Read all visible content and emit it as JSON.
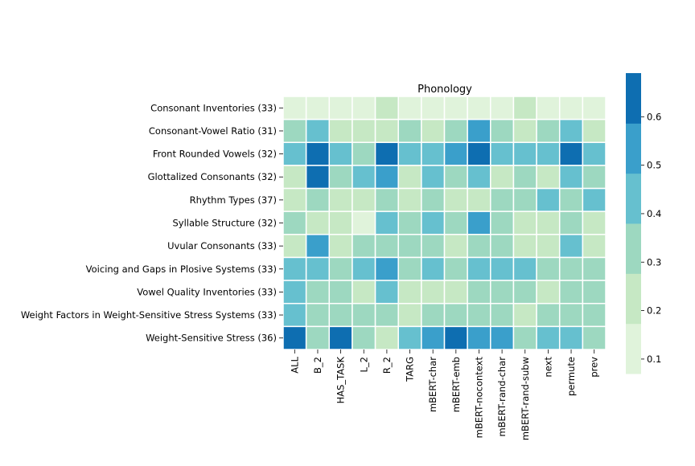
{
  "chart_data": {
    "type": "heatmap",
    "title": "Phonology",
    "xlabel": "",
    "ylabel": "",
    "rows": [
      "Consonant Inventories (33)",
      "Consonant-Vowel Ratio (31)",
      "Front Rounded Vowels (32)",
      "Glottalized Consonants (32)",
      "Rhythm Types (37)",
      "Syllable Structure (32)",
      "Uvular Consonants (33)",
      "Voicing and Gaps in Plosive Systems (33)",
      "Vowel Quality Inventories (33)",
      "Weight Factors in Weight-Sensitive Stress Systems (33)",
      "Weight-Sensitive Stress (36)"
    ],
    "columns": [
      "ALL",
      "B_2",
      "HAS_TASK",
      "L_2",
      "R_2",
      "TARG",
      "mBERT-char",
      "mBERT-emb",
      "mBERT-nocontext",
      "mBERT-rand-char",
      "mBERT-rand-subw",
      "next",
      "permute",
      "prev"
    ],
    "values": [
      [
        0.12,
        0.12,
        0.12,
        0.12,
        0.22,
        0.12,
        0.12,
        0.12,
        0.12,
        0.12,
        0.22,
        0.12,
        0.12,
        0.12
      ],
      [
        0.3,
        0.4,
        0.22,
        0.22,
        0.22,
        0.3,
        0.22,
        0.3,
        0.52,
        0.3,
        0.22,
        0.3,
        0.4,
        0.22
      ],
      [
        0.42,
        0.62,
        0.42,
        0.3,
        0.62,
        0.42,
        0.42,
        0.5,
        0.62,
        0.42,
        0.42,
        0.42,
        0.62,
        0.42
      ],
      [
        0.22,
        0.62,
        0.3,
        0.42,
        0.5,
        0.22,
        0.42,
        0.3,
        0.42,
        0.22,
        0.3,
        0.22,
        0.42,
        0.3
      ],
      [
        0.22,
        0.3,
        0.22,
        0.22,
        0.3,
        0.22,
        0.3,
        0.22,
        0.22,
        0.3,
        0.3,
        0.42,
        0.3,
        0.42
      ],
      [
        0.3,
        0.22,
        0.22,
        0.1,
        0.42,
        0.3,
        0.42,
        0.3,
        0.5,
        0.3,
        0.22,
        0.22,
        0.3,
        0.22
      ],
      [
        0.22,
        0.5,
        0.22,
        0.3,
        0.3,
        0.3,
        0.3,
        0.22,
        0.3,
        0.3,
        0.22,
        0.22,
        0.42,
        0.22
      ],
      [
        0.42,
        0.42,
        0.3,
        0.42,
        0.5,
        0.3,
        0.42,
        0.3,
        0.42,
        0.42,
        0.42,
        0.3,
        0.3,
        0.3
      ],
      [
        0.42,
        0.3,
        0.3,
        0.22,
        0.42,
        0.22,
        0.22,
        0.22,
        0.3,
        0.3,
        0.3,
        0.22,
        0.3,
        0.3
      ],
      [
        0.42,
        0.3,
        0.3,
        0.3,
        0.3,
        0.22,
        0.3,
        0.3,
        0.3,
        0.3,
        0.22,
        0.3,
        0.3,
        0.3
      ],
      [
        0.62,
        0.3,
        0.62,
        0.3,
        0.22,
        0.42,
        0.5,
        0.62,
        0.5,
        0.5,
        0.3,
        0.42,
        0.42,
        0.3
      ]
    ],
    "colorbar": {
      "range": [
        0.07,
        0.69
      ],
      "ticks": [
        0.1,
        0.2,
        0.3,
        0.4,
        0.5,
        0.6
      ],
      "tick_labels": [
        "0.1",
        "0.2",
        "0.3",
        "0.4",
        "0.5",
        "0.6"
      ],
      "colors": [
        "#e0f3db",
        "#c6e8c4",
        "#9dd8c0",
        "#66c0cf",
        "#3a9fcb",
        "#0e6eb1"
      ]
    },
    "grid": true,
    "cell_border_color": "#ffffff",
    "legend_placement": "right"
  }
}
